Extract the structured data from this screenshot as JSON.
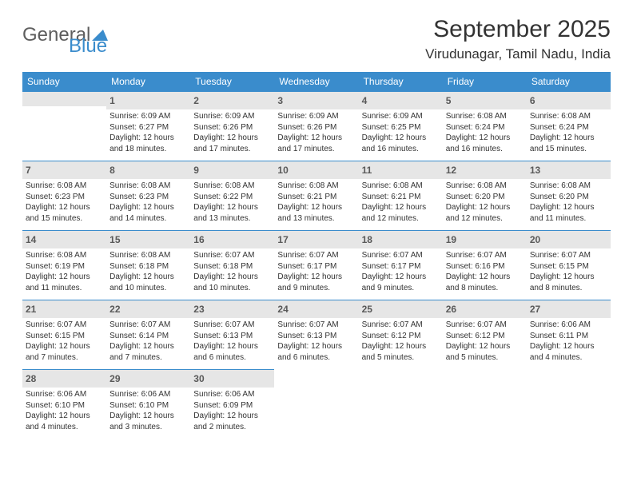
{
  "brand": {
    "name1": "General",
    "name2": "Blue"
  },
  "header": {
    "month_title": "September 2025",
    "location": "Virudunagar, Tamil Nadu, India"
  },
  "colors": {
    "header_bg": "#3a8ccc",
    "header_text": "#ffffff",
    "daynum_bg": "#e6e6e6",
    "border": "#3a8ccc",
    "body_text": "#333333",
    "logo_gray": "#5e5e5e",
    "logo_blue": "#3a8ccc",
    "background": "#ffffff"
  },
  "typography": {
    "month_title_fontsize": 30,
    "location_fontsize": 17,
    "day_header_fontsize": 12,
    "day_num_fontsize": 12,
    "body_fontsize": 10,
    "font_family": "Arial"
  },
  "day_headers": [
    "Sunday",
    "Monday",
    "Tuesday",
    "Wednesday",
    "Thursday",
    "Friday",
    "Saturday"
  ],
  "weeks": [
    [
      {
        "num": "",
        "sunrise": "",
        "sunset": "",
        "daylight1": "",
        "daylight2": ""
      },
      {
        "num": "1",
        "sunrise": "Sunrise: 6:09 AM",
        "sunset": "Sunset: 6:27 PM",
        "daylight1": "Daylight: 12 hours",
        "daylight2": "and 18 minutes."
      },
      {
        "num": "2",
        "sunrise": "Sunrise: 6:09 AM",
        "sunset": "Sunset: 6:26 PM",
        "daylight1": "Daylight: 12 hours",
        "daylight2": "and 17 minutes."
      },
      {
        "num": "3",
        "sunrise": "Sunrise: 6:09 AM",
        "sunset": "Sunset: 6:26 PM",
        "daylight1": "Daylight: 12 hours",
        "daylight2": "and 17 minutes."
      },
      {
        "num": "4",
        "sunrise": "Sunrise: 6:09 AM",
        "sunset": "Sunset: 6:25 PM",
        "daylight1": "Daylight: 12 hours",
        "daylight2": "and 16 minutes."
      },
      {
        "num": "5",
        "sunrise": "Sunrise: 6:08 AM",
        "sunset": "Sunset: 6:24 PM",
        "daylight1": "Daylight: 12 hours",
        "daylight2": "and 16 minutes."
      },
      {
        "num": "6",
        "sunrise": "Sunrise: 6:08 AM",
        "sunset": "Sunset: 6:24 PM",
        "daylight1": "Daylight: 12 hours",
        "daylight2": "and 15 minutes."
      }
    ],
    [
      {
        "num": "7",
        "sunrise": "Sunrise: 6:08 AM",
        "sunset": "Sunset: 6:23 PM",
        "daylight1": "Daylight: 12 hours",
        "daylight2": "and 15 minutes."
      },
      {
        "num": "8",
        "sunrise": "Sunrise: 6:08 AM",
        "sunset": "Sunset: 6:23 PM",
        "daylight1": "Daylight: 12 hours",
        "daylight2": "and 14 minutes."
      },
      {
        "num": "9",
        "sunrise": "Sunrise: 6:08 AM",
        "sunset": "Sunset: 6:22 PM",
        "daylight1": "Daylight: 12 hours",
        "daylight2": "and 13 minutes."
      },
      {
        "num": "10",
        "sunrise": "Sunrise: 6:08 AM",
        "sunset": "Sunset: 6:21 PM",
        "daylight1": "Daylight: 12 hours",
        "daylight2": "and 13 minutes."
      },
      {
        "num": "11",
        "sunrise": "Sunrise: 6:08 AM",
        "sunset": "Sunset: 6:21 PM",
        "daylight1": "Daylight: 12 hours",
        "daylight2": "and 12 minutes."
      },
      {
        "num": "12",
        "sunrise": "Sunrise: 6:08 AM",
        "sunset": "Sunset: 6:20 PM",
        "daylight1": "Daylight: 12 hours",
        "daylight2": "and 12 minutes."
      },
      {
        "num": "13",
        "sunrise": "Sunrise: 6:08 AM",
        "sunset": "Sunset: 6:20 PM",
        "daylight1": "Daylight: 12 hours",
        "daylight2": "and 11 minutes."
      }
    ],
    [
      {
        "num": "14",
        "sunrise": "Sunrise: 6:08 AM",
        "sunset": "Sunset: 6:19 PM",
        "daylight1": "Daylight: 12 hours",
        "daylight2": "and 11 minutes."
      },
      {
        "num": "15",
        "sunrise": "Sunrise: 6:08 AM",
        "sunset": "Sunset: 6:18 PM",
        "daylight1": "Daylight: 12 hours",
        "daylight2": "and 10 minutes."
      },
      {
        "num": "16",
        "sunrise": "Sunrise: 6:07 AM",
        "sunset": "Sunset: 6:18 PM",
        "daylight1": "Daylight: 12 hours",
        "daylight2": "and 10 minutes."
      },
      {
        "num": "17",
        "sunrise": "Sunrise: 6:07 AM",
        "sunset": "Sunset: 6:17 PM",
        "daylight1": "Daylight: 12 hours",
        "daylight2": "and 9 minutes."
      },
      {
        "num": "18",
        "sunrise": "Sunrise: 6:07 AM",
        "sunset": "Sunset: 6:17 PM",
        "daylight1": "Daylight: 12 hours",
        "daylight2": "and 9 minutes."
      },
      {
        "num": "19",
        "sunrise": "Sunrise: 6:07 AM",
        "sunset": "Sunset: 6:16 PM",
        "daylight1": "Daylight: 12 hours",
        "daylight2": "and 8 minutes."
      },
      {
        "num": "20",
        "sunrise": "Sunrise: 6:07 AM",
        "sunset": "Sunset: 6:15 PM",
        "daylight1": "Daylight: 12 hours",
        "daylight2": "and 8 minutes."
      }
    ],
    [
      {
        "num": "21",
        "sunrise": "Sunrise: 6:07 AM",
        "sunset": "Sunset: 6:15 PM",
        "daylight1": "Daylight: 12 hours",
        "daylight2": "and 7 minutes."
      },
      {
        "num": "22",
        "sunrise": "Sunrise: 6:07 AM",
        "sunset": "Sunset: 6:14 PM",
        "daylight1": "Daylight: 12 hours",
        "daylight2": "and 7 minutes."
      },
      {
        "num": "23",
        "sunrise": "Sunrise: 6:07 AM",
        "sunset": "Sunset: 6:13 PM",
        "daylight1": "Daylight: 12 hours",
        "daylight2": "and 6 minutes."
      },
      {
        "num": "24",
        "sunrise": "Sunrise: 6:07 AM",
        "sunset": "Sunset: 6:13 PM",
        "daylight1": "Daylight: 12 hours",
        "daylight2": "and 6 minutes."
      },
      {
        "num": "25",
        "sunrise": "Sunrise: 6:07 AM",
        "sunset": "Sunset: 6:12 PM",
        "daylight1": "Daylight: 12 hours",
        "daylight2": "and 5 minutes."
      },
      {
        "num": "26",
        "sunrise": "Sunrise: 6:07 AM",
        "sunset": "Sunset: 6:12 PM",
        "daylight1": "Daylight: 12 hours",
        "daylight2": "and 5 minutes."
      },
      {
        "num": "27",
        "sunrise": "Sunrise: 6:06 AM",
        "sunset": "Sunset: 6:11 PM",
        "daylight1": "Daylight: 12 hours",
        "daylight2": "and 4 minutes."
      }
    ],
    [
      {
        "num": "28",
        "sunrise": "Sunrise: 6:06 AM",
        "sunset": "Sunset: 6:10 PM",
        "daylight1": "Daylight: 12 hours",
        "daylight2": "and 4 minutes."
      },
      {
        "num": "29",
        "sunrise": "Sunrise: 6:06 AM",
        "sunset": "Sunset: 6:10 PM",
        "daylight1": "Daylight: 12 hours",
        "daylight2": "and 3 minutes."
      },
      {
        "num": "30",
        "sunrise": "Sunrise: 6:06 AM",
        "sunset": "Sunset: 6:09 PM",
        "daylight1": "Daylight: 12 hours",
        "daylight2": "and 2 minutes."
      },
      {
        "num": "",
        "sunrise": "",
        "sunset": "",
        "daylight1": "",
        "daylight2": ""
      },
      {
        "num": "",
        "sunrise": "",
        "sunset": "",
        "daylight1": "",
        "daylight2": ""
      },
      {
        "num": "",
        "sunrise": "",
        "sunset": "",
        "daylight1": "",
        "daylight2": ""
      },
      {
        "num": "",
        "sunrise": "",
        "sunset": "",
        "daylight1": "",
        "daylight2": ""
      }
    ]
  ]
}
